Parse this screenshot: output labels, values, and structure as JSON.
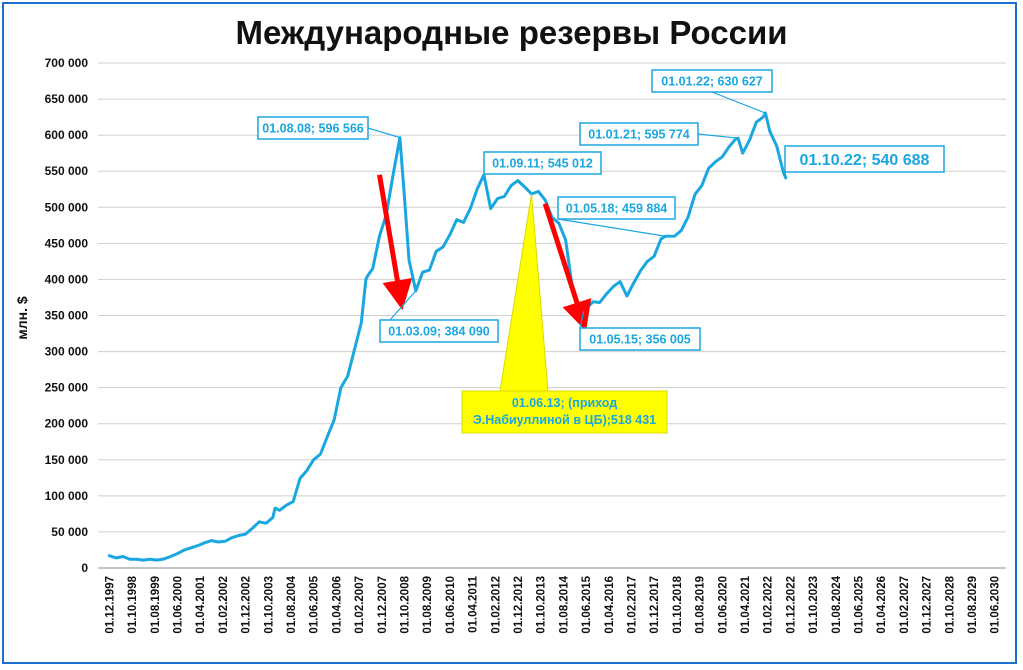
{
  "chart_data": {
    "type": "line",
    "title": "Международные резервы России",
    "ylabel": "млн. $",
    "xlabel": "",
    "ylim": [
      0,
      700000
    ],
    "yticks": [
      "0",
      "50 000",
      "100 000",
      "150 000",
      "200 000",
      "250 000",
      "300 000",
      "350 000",
      "400 000",
      "450 000",
      "500 000",
      "550 000",
      "600 000",
      "650 000",
      "700 000"
    ],
    "xticks": [
      "01.12.1997",
      "01.10.1998",
      "01.08.1999",
      "01.06.2000",
      "01.04.2001",
      "01.02.2002",
      "01.12.2002",
      "01.10.2003",
      "01.08.2004",
      "01.06.2005",
      "01.04.2006",
      "01.02.2007",
      "01.12.2007",
      "01.10.2008",
      "01.08.2009",
      "01.06.2010",
      "01.04.2011",
      "01.02.2012",
      "01.12.2012",
      "01.10.2013",
      "01.08.2014",
      "01.06.2015",
      "01.04.2016",
      "01.02.2017",
      "01.12.2017",
      "01.10.2018",
      "01.08.2019",
      "01.06.2020",
      "01.04.2021",
      "01.02.2022",
      "01.12.2022",
      "01.10.2023",
      "01.08.2024",
      "01.06.2025",
      "01.04.2026",
      "01.02.2027",
      "01.12.2027",
      "01.10.2028",
      "01.08.2029",
      "01.06.2030"
    ],
    "grid": true,
    "line_color": "#1aa7e0",
    "series": [
      {
        "values": [
          [
            "1997-12",
            17000
          ],
          [
            "1998-03",
            14000
          ],
          [
            "1998-06",
            16000
          ],
          [
            "1998-09",
            12000
          ],
          [
            "1998-12",
            12000
          ],
          [
            "1999-03",
            11000
          ],
          [
            "1999-06",
            12000
          ],
          [
            "1999-09",
            11000
          ],
          [
            "1999-12",
            12500
          ],
          [
            "2000-03",
            16000
          ],
          [
            "2000-06",
            20000
          ],
          [
            "2000-09",
            25000
          ],
          [
            "2000-12",
            28000
          ],
          [
            "2001-03",
            31000
          ],
          [
            "2001-06",
            35000
          ],
          [
            "2001-09",
            38000
          ],
          [
            "2001-12",
            36000
          ],
          [
            "2002-03",
            37000
          ],
          [
            "2002-06",
            42000
          ],
          [
            "2002-09",
            45000
          ],
          [
            "2002-12",
            47000
          ],
          [
            "2003-03",
            55000
          ],
          [
            "2003-06",
            64000
          ],
          [
            "2003-09",
            62000
          ],
          [
            "2003-12",
            70000
          ],
          [
            "2004-01",
            83000
          ],
          [
            "2004-03",
            80000
          ],
          [
            "2004-06",
            87000
          ],
          [
            "2004-09",
            92000
          ],
          [
            "2004-12",
            124000
          ],
          [
            "2005-03",
            135000
          ],
          [
            "2005-06",
            150000
          ],
          [
            "2005-09",
            158000
          ],
          [
            "2005-12",
            182000
          ],
          [
            "2006-03",
            205000
          ],
          [
            "2006-06",
            250000
          ],
          [
            "2006-09",
            266000
          ],
          [
            "2006-12",
            303000
          ],
          [
            "2007-03",
            340000
          ],
          [
            "2007-05",
            400000
          ],
          [
            "2007-06",
            406000
          ],
          [
            "2007-08",
            415000
          ],
          [
            "2007-11",
            460000
          ],
          [
            "2008-02",
            490000
          ],
          [
            "2008-05",
            545000
          ],
          [
            "2008-08",
            596566
          ],
          [
            "2008-10",
            515000
          ],
          [
            "2008-12",
            427000
          ],
          [
            "2009-03",
            384090
          ],
          [
            "2009-06",
            410000
          ],
          [
            "2009-09",
            413000
          ],
          [
            "2009-12",
            439000
          ],
          [
            "2010-03",
            445000
          ],
          [
            "2010-06",
            462000
          ],
          [
            "2010-09",
            483000
          ],
          [
            "2010-12",
            479000
          ],
          [
            "2011-03",
            498000
          ],
          [
            "2011-06",
            525000
          ],
          [
            "2011-09",
            545012
          ],
          [
            "2011-12",
            498000
          ],
          [
            "2012-03",
            512000
          ],
          [
            "2012-06",
            515000
          ],
          [
            "2012-09",
            530000
          ],
          [
            "2012-12",
            537000
          ],
          [
            "2013-03",
            528000
          ],
          [
            "2013-06",
            518431
          ],
          [
            "2013-09",
            522000
          ],
          [
            "2013-12",
            510000
          ],
          [
            "2014-03",
            486000
          ],
          [
            "2014-06",
            478000
          ],
          [
            "2014-09",
            455000
          ],
          [
            "2014-12",
            388000
          ],
          [
            "2015-03",
            360000
          ],
          [
            "2015-05",
            356005
          ],
          [
            "2015-09",
            369000
          ],
          [
            "2015-12",
            368000
          ],
          [
            "2016-03",
            380000
          ],
          [
            "2016-06",
            390000
          ],
          [
            "2016-09",
            397000
          ],
          [
            "2016-12",
            377000
          ],
          [
            "2017-03",
            395000
          ],
          [
            "2017-06",
            412000
          ],
          [
            "2017-09",
            425000
          ],
          [
            "2017-12",
            432000
          ],
          [
            "2018-03",
            456000
          ],
          [
            "2018-05",
            459884
          ],
          [
            "2018-09",
            460000
          ],
          [
            "2018-12",
            468000
          ],
          [
            "2019-03",
            487000
          ],
          [
            "2019-06",
            518000
          ],
          [
            "2019-09",
            530000
          ],
          [
            "2019-12",
            554000
          ],
          [
            "2020-03",
            563000
          ],
          [
            "2020-06",
            570000
          ],
          [
            "2020-09",
            584000
          ],
          [
            "2020-12",
            595000
          ],
          [
            "2021-01",
            595774
          ],
          [
            "2021-03",
            575000
          ],
          [
            "2021-06",
            593000
          ],
          [
            "2021-09",
            618000
          ],
          [
            "2021-12",
            625000
          ],
          [
            "2022-01",
            630627
          ],
          [
            "2022-03",
            605000
          ],
          [
            "2022-06",
            585000
          ],
          [
            "2022-09",
            548000
          ],
          [
            "2022-10",
            540688
          ]
        ]
      }
    ],
    "annotations": [
      {
        "label": "01.08.08; 596 566",
        "x": "2008-08",
        "y": 596566,
        "style": "box"
      },
      {
        "label": "01.03.09; 384 090",
        "x": "2009-03",
        "y": 384090,
        "style": "box"
      },
      {
        "label": "01.09.11; 545 012",
        "x": "2011-09",
        "y": 545012,
        "style": "box"
      },
      {
        "label": "01.05.18; 459 884",
        "x": "2018-05",
        "y": 459884,
        "style": "box"
      },
      {
        "label": "01.05.15; 356 005",
        "x": "2015-05",
        "y": 356005,
        "style": "box"
      },
      {
        "label": "01.01.21; 595 774",
        "x": "2021-01",
        "y": 595774,
        "style": "box"
      },
      {
        "label": "01.01.22; 630 627",
        "x": "2022-01",
        "y": 630627,
        "style": "box"
      },
      {
        "label": "01.10.22; 540 688",
        "x": "2022-10",
        "y": 540688,
        "style": "box-large"
      },
      {
        "label_lines": [
          "01.06.13; (приход",
          "Э.Набиуллиной в ЦБ);518 431"
        ],
        "x": "2013-06",
        "y": 518431,
        "style": "highlight"
      }
    ],
    "arrows": [
      {
        "from": [
          "2007-11",
          545000
        ],
        "to": [
          "2008-08",
          378000
        ],
        "color": "#ff0000"
      },
      {
        "from": [
          "2013-12",
          505000
        ],
        "to": [
          "2015-04",
          348000
        ],
        "color": "#ff0000"
      }
    ]
  }
}
